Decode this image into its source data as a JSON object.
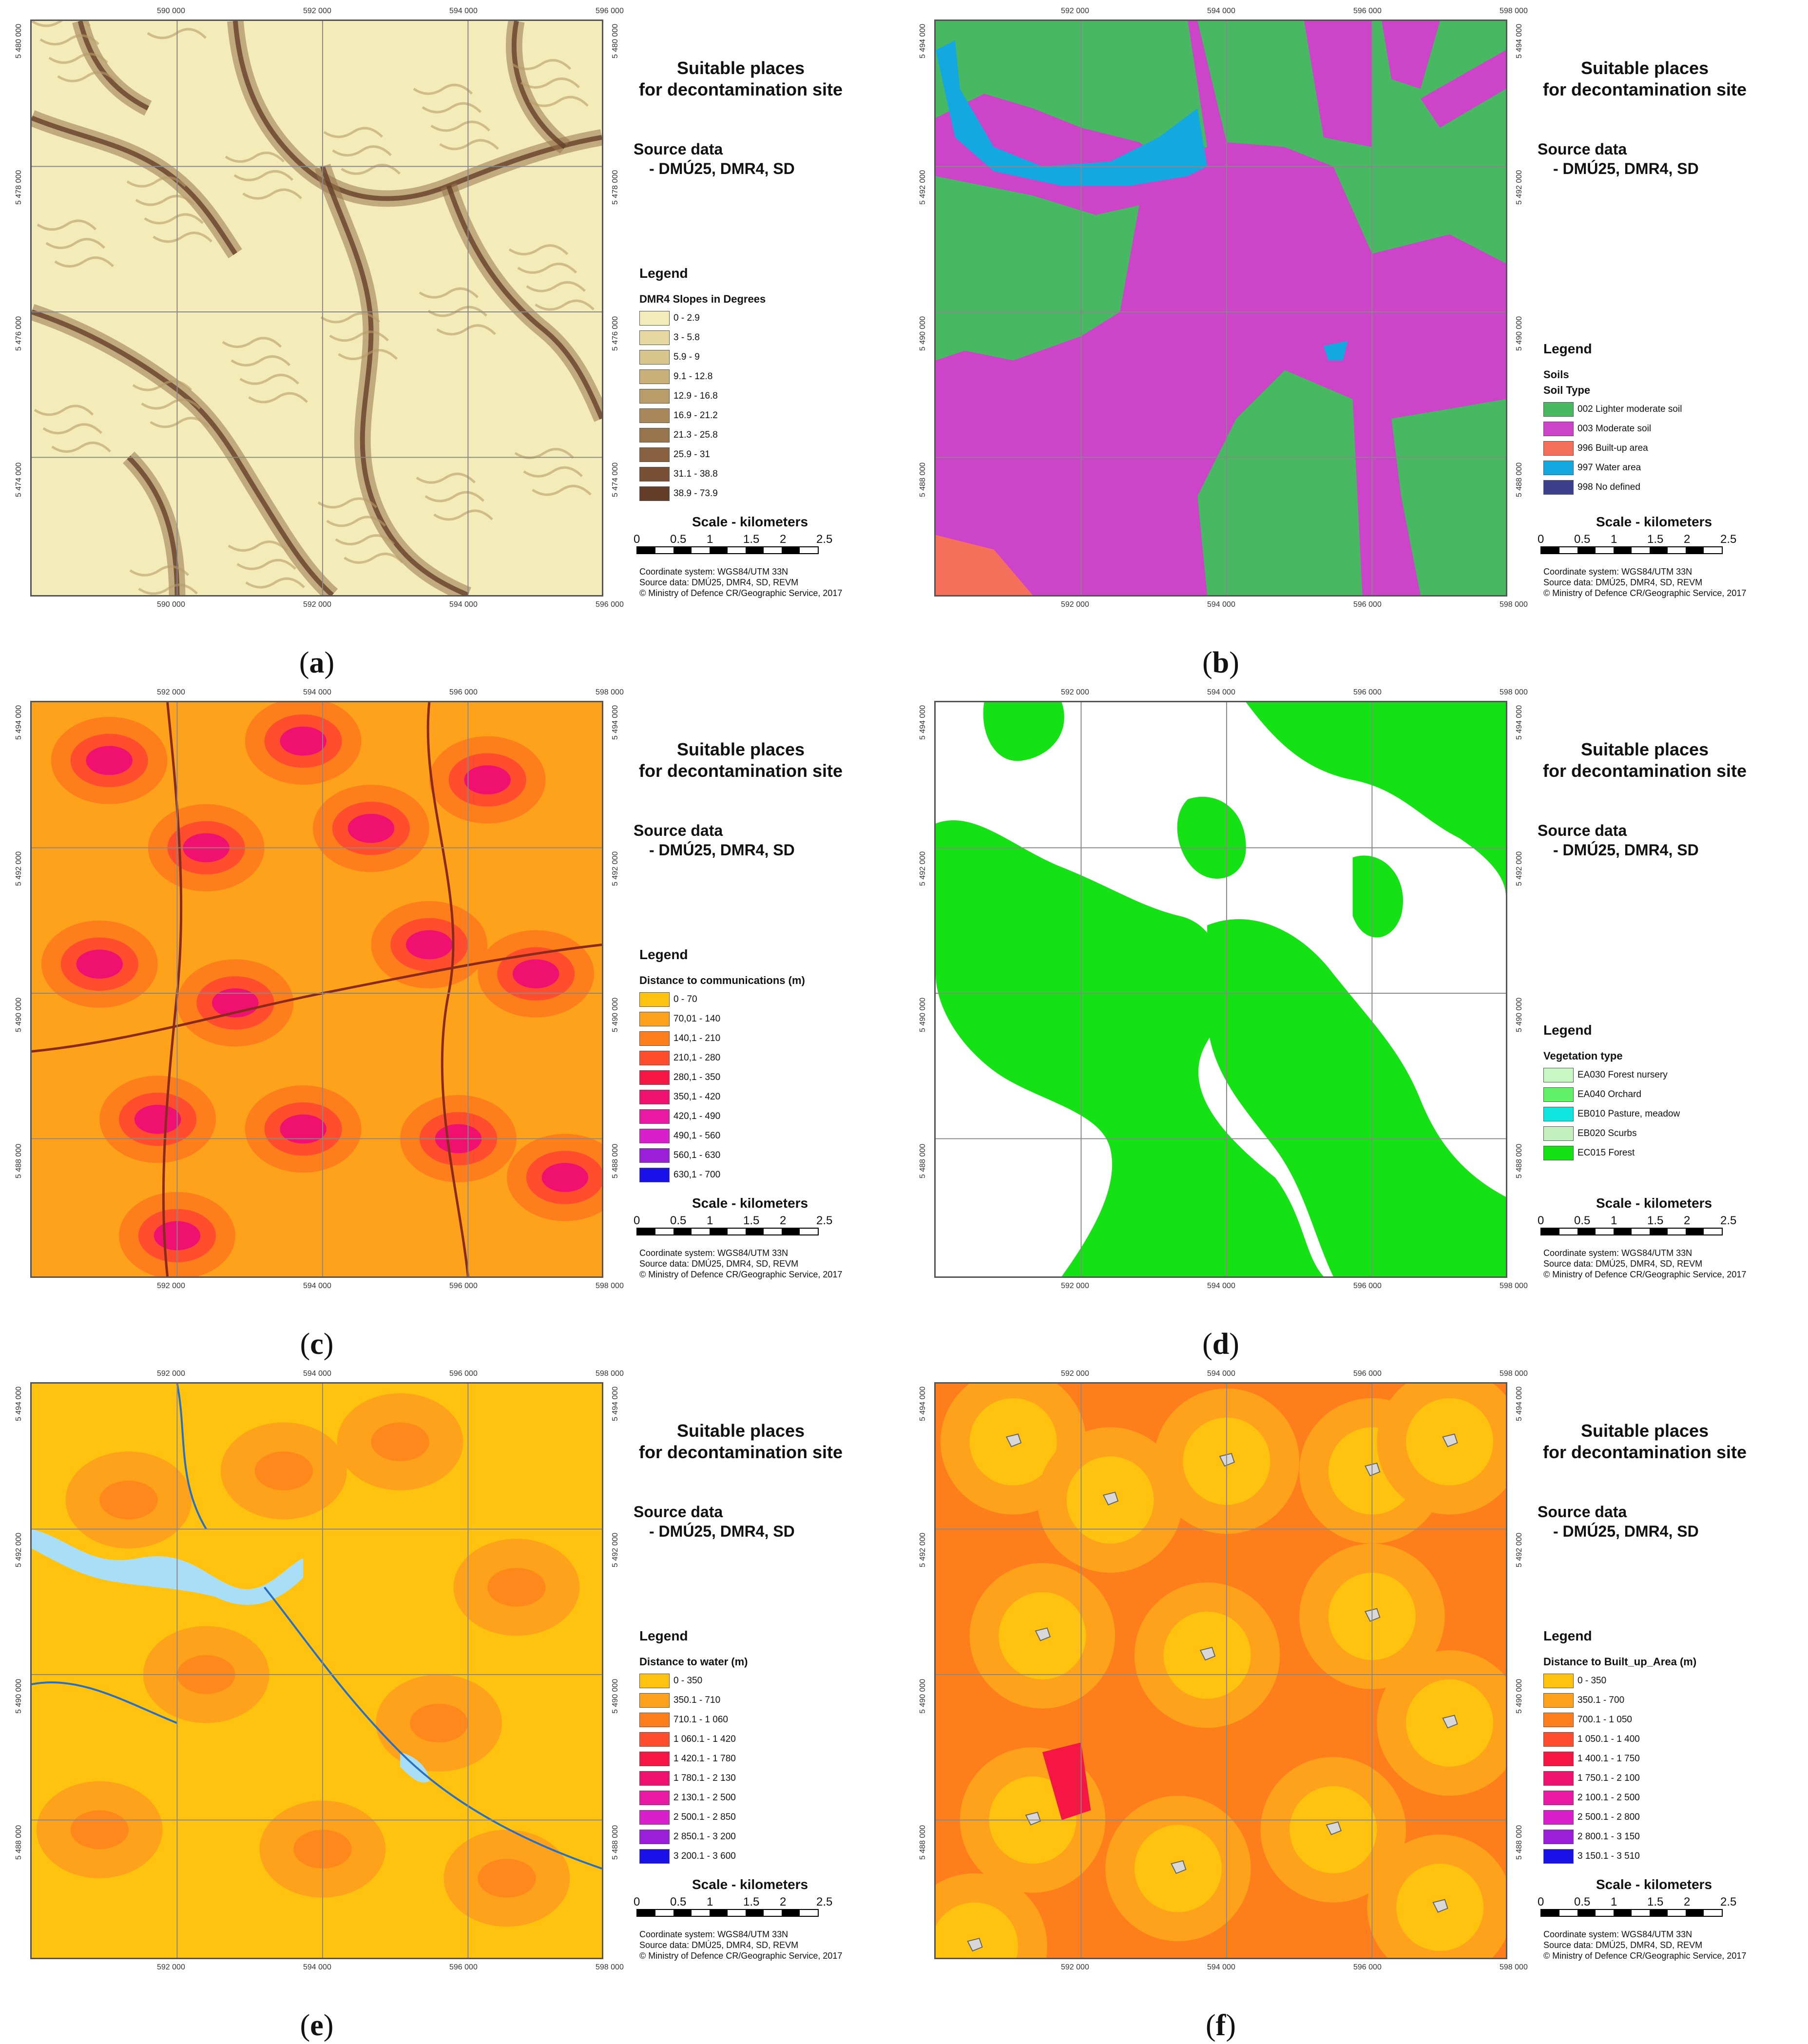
{
  "common": {
    "title": "Suitable places\nfor decontamination site",
    "source_heading": "Source data",
    "source_value": "- DMÚ25, DMR4, SD",
    "legend_heading": "Legend",
    "scale_heading": "Scale - kilometers",
    "scale_ticks": [
      "0",
      "0.5",
      "1",
      "1.5",
      "2",
      "2.5"
    ],
    "credits": [
      "Coordinate system: WGS84/UTM 33N",
      "Source data: DMÚ25, DMR4, SD, REVM",
      "© Ministry of Defence CR/Geographic Service, 2017"
    ]
  },
  "panels": [
    {
      "letter": "a",
      "x_ticks": [
        "590 000",
        "592 000",
        "594 000",
        "596 000"
      ],
      "y_ticks": [
        "5 480 000",
        "5 478 000",
        "5 476 000",
        "5 474 000"
      ],
      "legend_title": "DMR4 Slopes in Degrees",
      "legend_subtitle": "",
      "classes": [
        {
          "label": "0 - 2.9",
          "color": "#f3ebb8"
        },
        {
          "label": "3 - 5.8",
          "color": "#e6d8a0"
        },
        {
          "label": "5.9 - 9",
          "color": "#d8c68c"
        },
        {
          "label": "9.1 - 12.8",
          "color": "#c9b079"
        },
        {
          "label": "12.9 - 16.8",
          "color": "#b99d69"
        },
        {
          "label": "16.9 - 21.2",
          "color": "#a9885a"
        },
        {
          "label": "21.3 - 25.8",
          "color": "#98744c"
        },
        {
          "label": "25.9 - 31",
          "color": "#876140"
        },
        {
          "label": "31.1 - 38.8",
          "color": "#764f34"
        },
        {
          "label": "38.9 - 73.9",
          "color": "#643e29"
        }
      ],
      "scale_visible": true
    },
    {
      "letter": "b",
      "x_ticks": [
        "592 000",
        "594 000",
        "596 000",
        "598 000"
      ],
      "y_ticks": [
        "5 494 000",
        "5 492 000",
        "5 490 000",
        "5 488 000"
      ],
      "legend_title": "Soils",
      "legend_subtitle": "Soil Type",
      "classes": [
        {
          "label": "002 Lighter moderate soil",
          "color": "#49b863"
        },
        {
          "label": "003 Moderate soil",
          "color": "#cc44c8"
        },
        {
          "label": "996 Built-up area",
          "color": "#f4705a"
        },
        {
          "label": "997 Water area",
          "color": "#14a8e0"
        },
        {
          "label": "998 No defined",
          "color": "#3c3f8c"
        }
      ],
      "scale_visible": true
    },
    {
      "letter": "c",
      "x_ticks": [
        "592 000",
        "594 000",
        "596 000",
        "598 000"
      ],
      "y_ticks": [
        "5 494 000",
        "5 492 000",
        "5 490 000",
        "5 488 000"
      ],
      "legend_title": "Distance to communications (m)",
      "legend_subtitle": "",
      "classes": [
        {
          "label": "0 - 70",
          "color": "#ffc20e"
        },
        {
          "label": "70,01 - 140",
          "color": "#ffa21b"
        },
        {
          "label": "140,1 - 210",
          "color": "#ff7e1c"
        },
        {
          "label": "210,1 - 280",
          "color": "#ff4d2e"
        },
        {
          "label": "280,1 - 350",
          "color": "#f51643"
        },
        {
          "label": "350,1 - 420",
          "color": "#f01070"
        },
        {
          "label": "420,1 - 490",
          "color": "#ea19a4"
        },
        {
          "label": "490,1 - 560",
          "color": "#d91fcc"
        },
        {
          "label": "560,1 - 630",
          "color": "#9b1fd8"
        },
        {
          "label": "630,1 - 700",
          "color": "#1a10e8"
        }
      ],
      "scale_visible": true
    },
    {
      "letter": "d",
      "x_ticks": [
        "592 000",
        "594 000",
        "596 000",
        "598 000"
      ],
      "y_ticks": [
        "5 494 000",
        "5 492 000",
        "5 490 000",
        "5 488 000"
      ],
      "legend_title": "Vegetation type",
      "legend_subtitle": "",
      "classes": [
        {
          "label": "EA030 Forest nursery",
          "color": "#c9f7c3"
        },
        {
          "label": "EA040 Orchard",
          "color": "#62f26a"
        },
        {
          "label": "EB010 Pasture, meadow",
          "color": "#10e6e0"
        },
        {
          "label": "EB020 Scurbs",
          "color": "#c4f0c0"
        },
        {
          "label": "EC015 Forest",
          "color": "#14e214"
        }
      ],
      "scale_visible": true
    },
    {
      "letter": "e",
      "x_ticks": [
        "592 000",
        "594 000",
        "596 000",
        "598 000"
      ],
      "y_ticks": [
        "5 494 000",
        "5 492 000",
        "5 490 000",
        "5 488 000"
      ],
      "legend_title": "Distance to water (m)",
      "legend_subtitle": "",
      "classes": [
        {
          "label": "0 - 350",
          "color": "#ffc20e"
        },
        {
          "label": "350.1 - 710",
          "color": "#ffa21b"
        },
        {
          "label": "710.1 - 1 060",
          "color": "#ff7e1c"
        },
        {
          "label": "1 060.1 - 1 420",
          "color": "#ff4d2e"
        },
        {
          "label": "1 420.1 - 1 780",
          "color": "#f51643"
        },
        {
          "label": "1 780.1 - 2 130",
          "color": "#f01070"
        },
        {
          "label": "2 130.1 - 2 500",
          "color": "#ea19a4"
        },
        {
          "label": "2 500.1 - 2 850",
          "color": "#d91fcc"
        },
        {
          "label": "2 850.1 - 3 200",
          "color": "#9b1fd8"
        },
        {
          "label": "3 200.1 - 3 600",
          "color": "#1a10e8"
        }
      ],
      "scale_visible": true
    },
    {
      "letter": "f",
      "x_ticks": [
        "592 000",
        "594 000",
        "596 000",
        "598 000"
      ],
      "y_ticks": [
        "5 494 000",
        "5 492 000",
        "5 490 000",
        "5 488 000"
      ],
      "legend_title": "Distance to  Built_up_Area (m)",
      "legend_subtitle": "",
      "classes": [
        {
          "label": "0 - 350",
          "color": "#ffc20e"
        },
        {
          "label": "350.1 - 700",
          "color": "#ffa21b"
        },
        {
          "label": "700.1 - 1 050",
          "color": "#ff7e1c"
        },
        {
          "label": "1 050.1 - 1 400",
          "color": "#ff4d2e"
        },
        {
          "label": "1 400.1 - 1 750",
          "color": "#f51643"
        },
        {
          "label": "1 750.1 - 2 100",
          "color": "#f01070"
        },
        {
          "label": "2 100.1 - 2 500",
          "color": "#ea19a4"
        },
        {
          "label": "2 500.1 - 2 800",
          "color": "#d91fcc"
        },
        {
          "label": "2 800.1 - 3 150",
          "color": "#9b1fd8"
        },
        {
          "label": "3 150.1 - 3 510",
          "color": "#1a10e8"
        }
      ],
      "scale_visible": true
    }
  ]
}
